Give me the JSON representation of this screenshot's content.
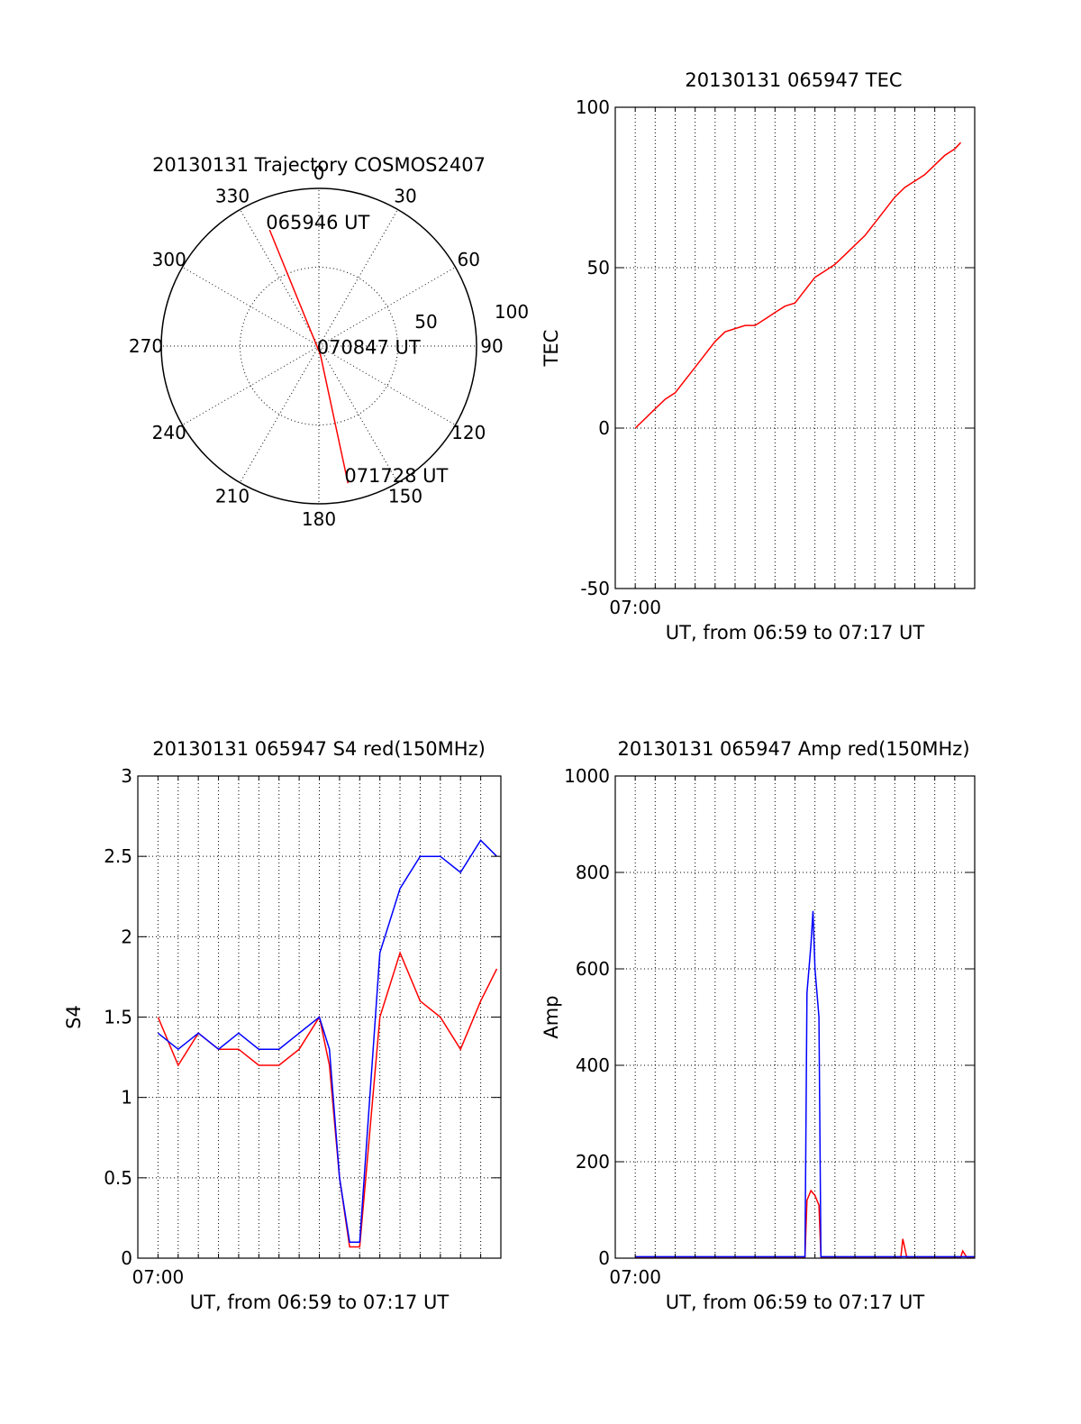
{
  "colors": {
    "red": "#ff0000",
    "blue": "#0000ff",
    "axis": "#000000",
    "grid": "#000000",
    "background": "#ffffff"
  },
  "chart_data": [
    {
      "id": "trajectory",
      "type": "polar",
      "title": "20130131 Trajectory COSMOS2407",
      "angle_labels": [
        "0",
        "30",
        "60",
        "90",
        "120",
        "150",
        "180",
        "210",
        "240",
        "270",
        "300",
        "330"
      ],
      "radial_labels": [
        "50",
        "100"
      ],
      "grid": true,
      "track": [
        {
          "azimuth": 337,
          "elevation": 18,
          "label": "065946 UT"
        },
        {
          "azimuth": 170,
          "elevation": 85,
          "label": "070847 UT"
        },
        {
          "azimuth": 168,
          "elevation": 10,
          "label": "071728 UT"
        }
      ],
      "track_color": "#ff0000"
    },
    {
      "id": "tec",
      "type": "line",
      "title": "20130131 065947 TEC",
      "xlabel": "UT, from 06:59 to 07:17 UT",
      "ylabel": "TEC",
      "xtick_label": "07:00",
      "ylim": [
        -50,
        100
      ],
      "yticks": [
        "100",
        "50",
        "0",
        "-50"
      ],
      "xlim_minutes": [
        59,
        77
      ],
      "grid": true,
      "series": [
        {
          "color": "#ff0000",
          "x": [
            60.0,
            60.5,
            61.0,
            61.5,
            62.0,
            62.5,
            63.0,
            63.5,
            64.0,
            64.5,
            65.0,
            65.5,
            66.0,
            66.5,
            67.0,
            67.5,
            68.0,
            68.5,
            69.0,
            69.5,
            70.0,
            70.5,
            71.0,
            71.5,
            72.0,
            72.5,
            73.0,
            73.5,
            74.0,
            74.5,
            75.0,
            75.5,
            76.0,
            76.3
          ],
          "y": [
            0,
            3,
            6,
            9,
            11,
            15,
            19,
            23,
            27,
            30,
            31,
            32,
            32,
            34,
            36,
            38,
            39,
            43,
            47,
            49,
            51,
            54,
            57,
            60,
            64,
            68,
            72,
            75,
            77,
            79,
            82,
            85,
            87,
            89
          ]
        }
      ]
    },
    {
      "id": "s4",
      "type": "line",
      "title": "20130131 065947 S4 red(150MHz)",
      "xlabel": "UT, from 06:59 to 07:17 UT",
      "ylabel": "S4",
      "xtick_label": "07:00",
      "ylim": [
        0,
        3
      ],
      "yticks": [
        "3",
        "2.5",
        "2",
        "1.5",
        "1",
        "0.5",
        "0"
      ],
      "xlim_minutes": [
        59,
        77
      ],
      "grid": true,
      "series": [
        {
          "color": "#ff0000",
          "x": [
            60.0,
            61.0,
            62.0,
            63.0,
            64.0,
            65.0,
            66.0,
            67.0,
            68.0,
            68.5,
            69.0,
            69.5,
            70.0,
            71.0,
            72.0,
            73.0,
            74.0,
            75.0,
            76.0,
            76.8
          ],
          "y": [
            1.5,
            1.2,
            1.4,
            1.3,
            1.3,
            1.2,
            1.2,
            1.3,
            1.5,
            1.2,
            0.5,
            0.07,
            0.07,
            1.5,
            1.9,
            1.6,
            1.5,
            1.3,
            1.6,
            1.8
          ]
        },
        {
          "color": "#0000ff",
          "x": [
            60.0,
            61.0,
            62.0,
            63.0,
            64.0,
            65.0,
            66.0,
            67.0,
            68.0,
            68.5,
            69.0,
            69.5,
            70.0,
            71.0,
            72.0,
            73.0,
            74.0,
            75.0,
            76.0,
            76.8
          ],
          "y": [
            1.4,
            1.3,
            1.4,
            1.3,
            1.4,
            1.3,
            1.3,
            1.4,
            1.5,
            1.3,
            0.5,
            0.1,
            0.1,
            1.9,
            2.3,
            2.5,
            2.5,
            2.4,
            2.6,
            2.5
          ]
        }
      ]
    },
    {
      "id": "amp",
      "type": "line",
      "title": "20130131 065947 Amp red(150MHz)",
      "xlabel": "UT, from 06:59 to 07:17 UT",
      "ylabel": "Amp",
      "xtick_label": "07:00",
      "ylim": [
        0,
        1000
      ],
      "yticks": [
        "1000",
        "800",
        "600",
        "400",
        "200",
        "0"
      ],
      "xlim_minutes": [
        59,
        77
      ],
      "grid": true,
      "series": [
        {
          "color": "#ff0000",
          "x": [
            60.0,
            68.0,
            68.5,
            68.6,
            68.8,
            69.0,
            69.2,
            69.3,
            69.5,
            73.0,
            73.3,
            73.4,
            73.6,
            76.0,
            76.3,
            76.4,
            76.6,
            77.0
          ],
          "y": [
            2,
            2,
            2,
            120,
            140,
            130,
            110,
            2,
            2,
            2,
            2,
            40,
            2,
            2,
            2,
            15,
            2,
            2
          ]
        },
        {
          "color": "#0000ff",
          "x": [
            60.0,
            68.0,
            68.5,
            68.6,
            68.8,
            68.9,
            69.0,
            69.2,
            69.3,
            69.5,
            77.0
          ],
          "y": [
            3,
            3,
            3,
            550,
            650,
            720,
            600,
            500,
            3,
            3,
            3
          ]
        }
      ]
    }
  ]
}
